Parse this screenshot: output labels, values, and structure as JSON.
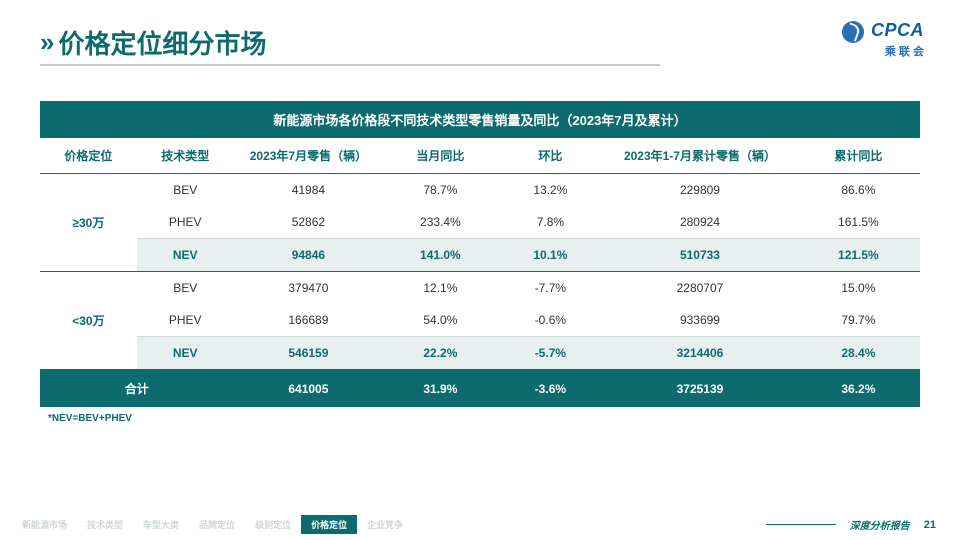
{
  "header": {
    "title": "价格定位细分市场",
    "logo_main": "CPCA",
    "logo_sub": "乘 联 会"
  },
  "table": {
    "title": "新能源市场各价格段不同技术类型零售销量及同比（2023年7月及累计）",
    "columns": [
      "价格定位",
      "技术类型",
      "2023年7月零售（辆）",
      "当月同比",
      "环比",
      "2023年1-7月累计零售（辆）",
      "累计同比"
    ],
    "col_widths": [
      "11%",
      "11%",
      "17%",
      "13%",
      "12%",
      "22%",
      "14%"
    ],
    "groups": [
      {
        "label": "≥30万",
        "rows": [
          {
            "tech": "BEV",
            "jul": "41984",
            "mom": "78.7%",
            "qoq": "13.2%",
            "cum": "229809",
            "yoy": "86.6%"
          },
          {
            "tech": "PHEV",
            "jul": "52862",
            "mom": "233.4%",
            "qoq": "7.8%",
            "cum": "280924",
            "yoy": "161.5%"
          }
        ],
        "nev": {
          "tech": "NEV",
          "jul": "94846",
          "mom": "141.0%",
          "qoq": "10.1%",
          "cum": "510733",
          "yoy": "121.5%"
        }
      },
      {
        "label": "<30万",
        "rows": [
          {
            "tech": "BEV",
            "jul": "379470",
            "mom": "12.1%",
            "qoq": "-7.7%",
            "cum": "2280707",
            "yoy": "15.0%"
          },
          {
            "tech": "PHEV",
            "jul": "166689",
            "mom": "54.0%",
            "qoq": "-0.6%",
            "cum": "933699",
            "yoy": "79.7%"
          }
        ],
        "nev": {
          "tech": "NEV",
          "jul": "546159",
          "mom": "22.2%",
          "qoq": "-5.7%",
          "cum": "3214406",
          "yoy": "28.4%"
        }
      }
    ],
    "total": {
      "label": "合计",
      "jul": "641005",
      "mom": "31.9%",
      "qoq": "-3.6%",
      "cum": "3725139",
      "yoy": "36.2%"
    },
    "footnote": "*NEV=BEV+PHEV"
  },
  "footer": {
    "tabs": [
      "新能源市场",
      "技术类型",
      "车型大类",
      "品牌定位",
      "级别定位",
      "价格定位",
      "企业竞争"
    ],
    "active_tab_index": 5,
    "label": "深度分析报告",
    "page": "21"
  },
  "colors": {
    "brand": "#0d6b6e",
    "header_underline": "#bfc9cc",
    "nev_bg": "#e8efef",
    "logo_blue": "#0d5ca8"
  }
}
